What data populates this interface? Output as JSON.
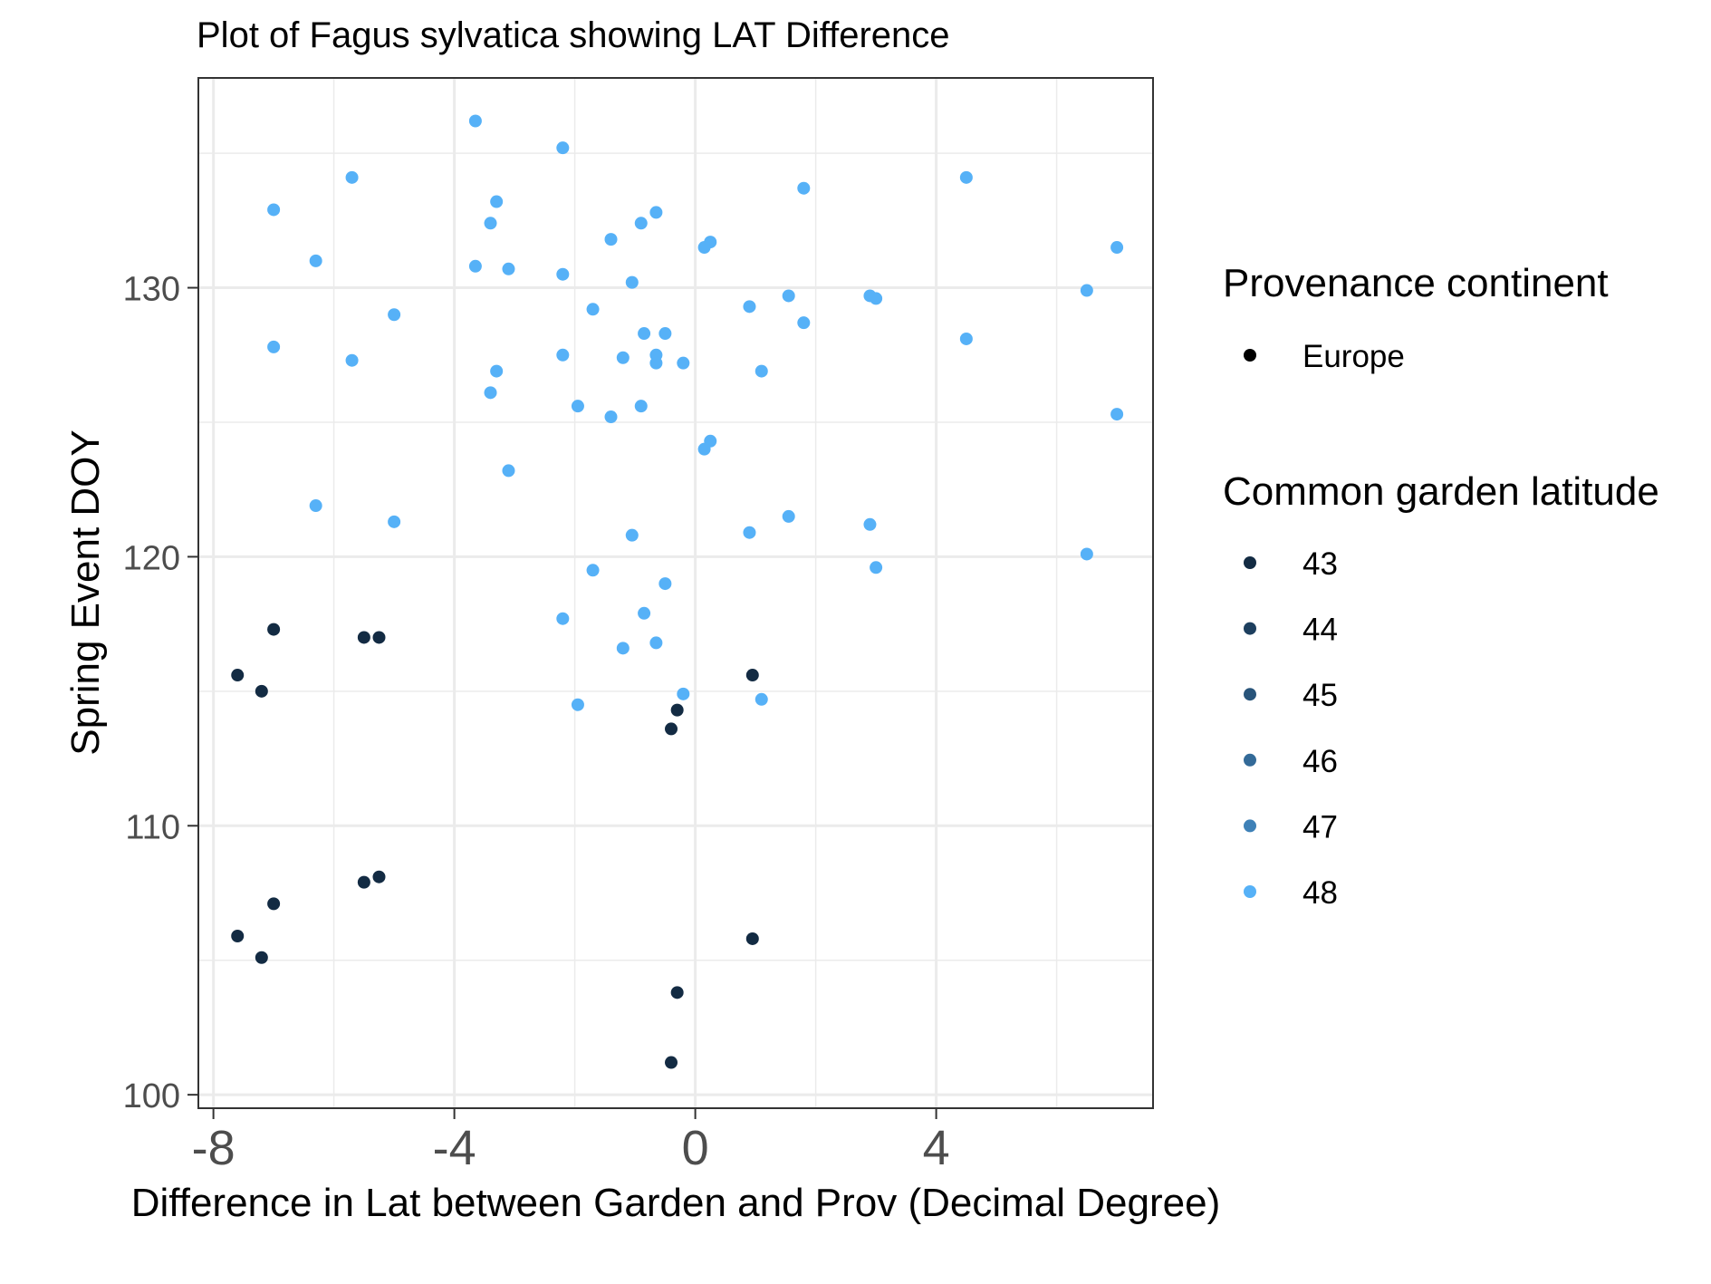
{
  "chart_data": {
    "type": "scatter",
    "title": "Plot of Fagus sylvatica showing LAT Difference",
    "xlabel": "Difference in Lat between Garden and Prov (Decimal Degree)",
    "ylabel": "Spring Event DOY",
    "xlim": [
      -8.25,
      7.6
    ],
    "ylim": [
      99.5,
      137.8
    ],
    "x_ticks": [
      -8,
      -4,
      0,
      4
    ],
    "x_tick_labels": [
      "-8",
      "-4",
      "0",
      "4"
    ],
    "y_ticks": [
      100,
      110,
      120,
      130
    ],
    "y_tick_labels": [
      "100",
      "110",
      "120",
      "130"
    ],
    "grid": true,
    "legend_position": "right",
    "legend": {
      "shape_title": "Provenance continent",
      "shape_items": [
        {
          "label": "Europe",
          "color": "#000000"
        }
      ],
      "color_title": "Common garden latitude",
      "color_items": [
        {
          "label": "43",
          "color": "#132B43"
        },
        {
          "label": "44",
          "color": "#1D3F5E"
        },
        {
          "label": "45",
          "color": "#28547A"
        },
        {
          "label": "46",
          "color": "#336A98"
        },
        {
          "label": "47",
          "color": "#3E81B7"
        },
        {
          "label": "48",
          "color": "#56B1F7"
        }
      ]
    },
    "series": [
      {
        "name": "43",
        "color": "#132B43",
        "points": [
          [
            -7.6,
            115.6
          ],
          [
            -7.2,
            115.0
          ],
          [
            -7.0,
            117.3
          ],
          [
            -5.5,
            117.0
          ],
          [
            -5.25,
            117.0
          ],
          [
            0.95,
            115.6
          ],
          [
            -0.3,
            114.3
          ],
          [
            -0.4,
            113.6
          ],
          [
            -7.6,
            105.9
          ],
          [
            -7.2,
            105.1
          ],
          [
            -7.0,
            107.1
          ],
          [
            -5.5,
            107.9
          ],
          [
            -5.25,
            108.1
          ],
          [
            0.95,
            105.8
          ],
          [
            -0.3,
            103.8
          ],
          [
            -0.4,
            101.2
          ]
        ]
      },
      {
        "name": "48",
        "color": "#56B1F7",
        "points": [
          [
            -3.65,
            136.2
          ],
          [
            -2.2,
            135.2
          ],
          [
            -5.7,
            134.1
          ],
          [
            -7.0,
            132.9
          ],
          [
            -3.3,
            133.2
          ],
          [
            -3.4,
            132.4
          ],
          [
            -0.65,
            132.8
          ],
          [
            -0.9,
            132.4
          ],
          [
            -1.4,
            131.8
          ],
          [
            0.25,
            131.7
          ],
          [
            0.15,
            131.5
          ],
          [
            -6.3,
            131.0
          ],
          [
            -3.65,
            130.8
          ],
          [
            -3.1,
            130.7
          ],
          [
            -2.2,
            130.5
          ],
          [
            -1.05,
            130.2
          ],
          [
            -1.7,
            129.2
          ],
          [
            -5.0,
            129.0
          ],
          [
            -7.0,
            127.8
          ],
          [
            -0.85,
            128.3
          ],
          [
            -0.5,
            128.3
          ],
          [
            -5.7,
            127.3
          ],
          [
            -2.2,
            127.5
          ],
          [
            -1.2,
            127.4
          ],
          [
            -0.65,
            127.5
          ],
          [
            -0.65,
            127.2
          ],
          [
            -0.2,
            127.2
          ],
          [
            -3.3,
            126.9
          ],
          [
            -3.4,
            126.1
          ],
          [
            -1.95,
            125.6
          ],
          [
            -0.9,
            125.6
          ],
          [
            -1.4,
            125.2
          ],
          [
            0.25,
            124.3
          ],
          [
            0.15,
            124.0
          ],
          [
            -3.1,
            123.2
          ],
          [
            -6.3,
            121.9
          ],
          [
            -5.0,
            121.3
          ],
          [
            -1.05,
            120.8
          ],
          [
            -1.7,
            119.5
          ],
          [
            -0.5,
            119.0
          ],
          [
            -0.85,
            117.9
          ],
          [
            -2.2,
            117.7
          ],
          [
            -0.65,
            116.8
          ],
          [
            -1.2,
            116.6
          ],
          [
            -0.2,
            114.9
          ],
          [
            -1.95,
            114.5
          ],
          [
            1.8,
            133.7
          ],
          [
            4.5,
            134.1
          ],
          [
            7.0,
            131.5
          ],
          [
            1.55,
            129.7
          ],
          [
            2.9,
            129.7
          ],
          [
            3.0,
            129.6
          ],
          [
            0.9,
            129.3
          ],
          [
            6.5,
            129.9
          ],
          [
            1.8,
            128.7
          ],
          [
            4.5,
            128.1
          ],
          [
            1.1,
            126.9
          ],
          [
            7.0,
            125.3
          ],
          [
            1.55,
            121.5
          ],
          [
            2.9,
            121.2
          ],
          [
            0.9,
            120.9
          ],
          [
            6.5,
            120.1
          ],
          [
            3.0,
            119.6
          ],
          [
            1.1,
            114.7
          ]
        ]
      }
    ]
  }
}
